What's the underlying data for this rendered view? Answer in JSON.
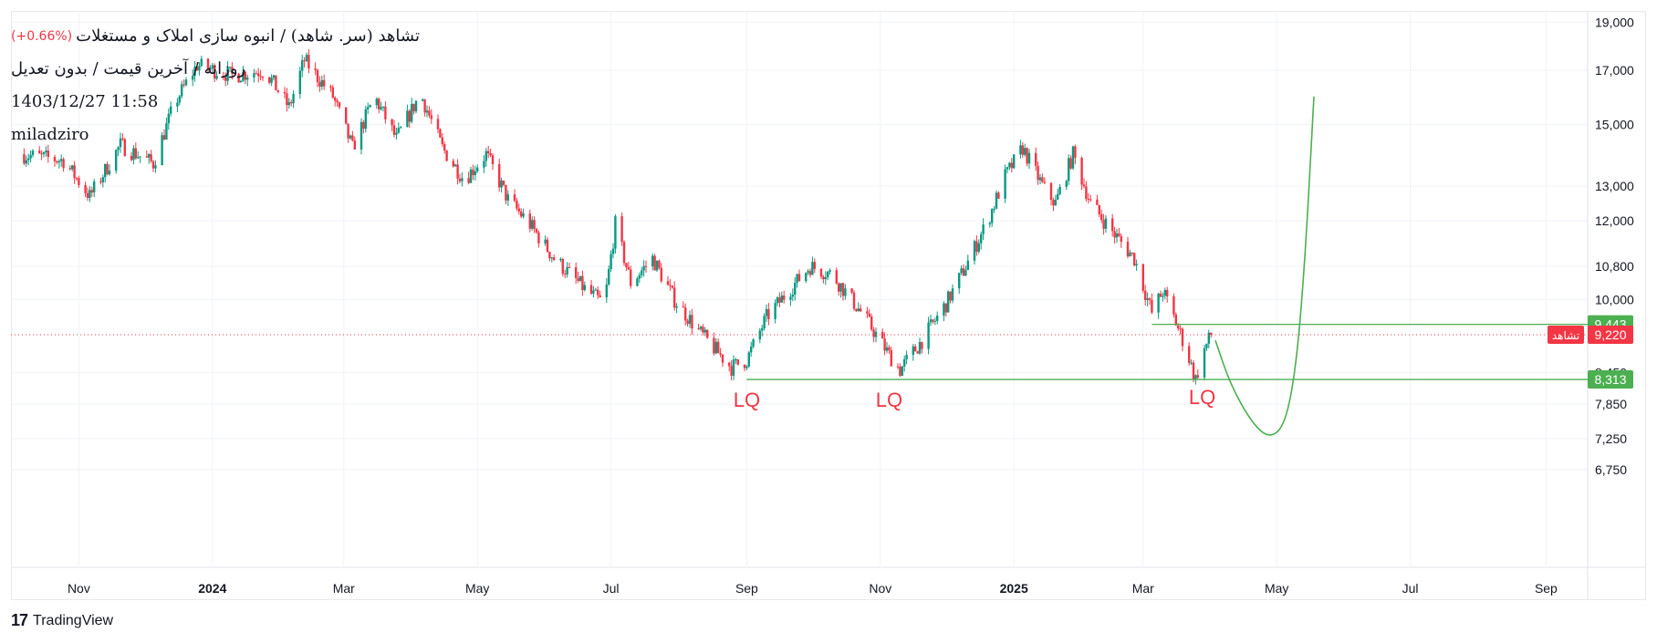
{
  "legend": {
    "title": "تشاهد (سر. شاهد) / انبوه سازی املاک و مستغلات",
    "change": "(+0.66%)",
    "subtitle": "روزانه / آخرین قیمت / بدون تعدیل",
    "datetime": "1403/12/27 11:58",
    "author": "miladziro"
  },
  "brand": {
    "name": "TradingView"
  },
  "colors": {
    "up": "#089981",
    "down": "#f23645",
    "guide": "#4caf50",
    "price_line": "#f23645",
    "grid": "#f0f3fa"
  },
  "chart_data": {
    "type": "candlestick",
    "scale": "log",
    "ylim": [
      6400,
      19500
    ],
    "y_ticks": [
      "19,000",
      "17,000",
      "15,000",
      "13,000",
      "12,000",
      "10,800",
      "10,000",
      "8,450",
      "7,850",
      "7,250",
      "6,750"
    ],
    "y_tick_values": [
      19000,
      17000,
      15000,
      13000,
      12000,
      10800,
      10000,
      8450,
      7850,
      7250,
      6750
    ],
    "x_ticks": [
      {
        "label": "Nov",
        "date": "2023-11-01",
        "bold": false
      },
      {
        "label": "2024",
        "date": "2024-01-01",
        "bold": true
      },
      {
        "label": "Mar",
        "date": "2024-03-01",
        "bold": false
      },
      {
        "label": "May",
        "date": "2024-05-01",
        "bold": false
      },
      {
        "label": "Jul",
        "date": "2024-07-01",
        "bold": false
      },
      {
        "label": "Sep",
        "date": "2024-09-01",
        "bold": false
      },
      {
        "label": "Nov",
        "date": "2024-11-01",
        "bold": false
      },
      {
        "label": "2025",
        "date": "2025-01-01",
        "bold": true
      },
      {
        "label": "Mar",
        "date": "2025-03-01",
        "bold": false
      },
      {
        "label": "May",
        "date": "2025-05-01",
        "bold": false
      },
      {
        "label": "Jul",
        "date": "2025-07-01",
        "bold": false
      },
      {
        "label": "Sep",
        "date": "2025-09-01",
        "bold": false
      }
    ],
    "xlim": [
      "2023-10-01",
      "2025-09-20"
    ],
    "price_path": [
      [
        "2023-10-05",
        14000
      ],
      [
        "2023-10-25",
        13800
      ],
      [
        "2023-11-06",
        12700
      ],
      [
        "2023-11-20",
        14300
      ],
      [
        "2023-12-05",
        13700
      ],
      [
        "2023-12-15",
        15800
      ],
      [
        "2023-12-25",
        17200
      ],
      [
        "2024-01-10",
        16800
      ],
      [
        "2024-01-25",
        17000
      ],
      [
        "2024-02-05",
        15600
      ],
      [
        "2024-02-12",
        17400
      ],
      [
        "2024-02-25",
        16000
      ],
      [
        "2024-03-05",
        14200
      ],
      [
        "2024-03-15",
        16000
      ],
      [
        "2024-03-25",
        14500
      ],
      [
        "2024-04-05",
        16100
      ],
      [
        "2024-04-15",
        14200
      ],
      [
        "2024-04-25",
        13200
      ],
      [
        "2024-05-05",
        14000
      ],
      [
        "2024-05-15",
        12600
      ],
      [
        "2024-05-25",
        11900
      ],
      [
        "2024-06-05",
        11000
      ],
      [
        "2024-06-20",
        10200
      ],
      [
        "2024-06-28",
        9900
      ],
      [
        "2024-07-03",
        11900
      ],
      [
        "2024-07-10",
        10400
      ],
      [
        "2024-07-20",
        11000
      ],
      [
        "2024-07-30",
        10000
      ],
      [
        "2024-08-10",
        9300
      ],
      [
        "2024-08-25",
        8550
      ],
      [
        "2024-09-01",
        8700
      ],
      [
        "2024-09-10",
        9600
      ],
      [
        "2024-09-20",
        10200
      ],
      [
        "2024-09-30",
        10800
      ],
      [
        "2024-10-10",
        10600
      ],
      [
        "2024-10-25",
        9600
      ],
      [
        "2024-11-05",
        8800
      ],
      [
        "2024-11-10",
        8500
      ],
      [
        "2024-11-20",
        9100
      ],
      [
        "2024-12-01",
        9900
      ],
      [
        "2024-12-10",
        10800
      ],
      [
        "2024-12-20",
        12000
      ],
      [
        "2024-12-28",
        13300
      ],
      [
        "2025-01-05",
        14200
      ],
      [
        "2025-01-15",
        12900
      ],
      [
        "2025-01-20",
        12500
      ],
      [
        "2025-01-28",
        14000
      ],
      [
        "2025-02-05",
        12500
      ],
      [
        "2025-02-15",
        11700
      ],
      [
        "2025-02-25",
        11000
      ],
      [
        "2025-03-05",
        9700
      ],
      [
        "2025-03-10",
        10200
      ],
      [
        "2025-03-15",
        9600
      ],
      [
        "2025-03-20",
        9000
      ],
      [
        "2025-03-25",
        8313
      ],
      [
        "2025-03-28",
        8800
      ],
      [
        "2025-04-01",
        9220
      ]
    ],
    "levels": [
      {
        "label": "9,443",
        "value": 9443,
        "from": "2025-03-05",
        "color": "#4caf50"
      },
      {
        "label": "8,313",
        "value": 8313,
        "from": "2024-09-01",
        "color": "#4caf50"
      }
    ],
    "last_price": {
      "label": "9,220",
      "value": 9220,
      "symbol": "تشاهد"
    },
    "annotations": [
      {
        "text": "LQ",
        "date": "2024-09-01",
        "value": 7800
      },
      {
        "text": "LQ",
        "date": "2024-11-05",
        "value": 7800
      },
      {
        "text": "LQ",
        "date": "2025-03-28",
        "value": 7850
      }
    ],
    "projection": [
      [
        "2025-04-03",
        9100
      ],
      [
        "2025-04-10",
        8200
      ],
      [
        "2025-04-20",
        7500
      ],
      [
        "2025-04-28",
        7250
      ],
      [
        "2025-05-05",
        7500
      ],
      [
        "2025-05-10",
        8600
      ],
      [
        "2025-05-14",
        11000
      ],
      [
        "2025-05-18",
        16000
      ]
    ]
  }
}
